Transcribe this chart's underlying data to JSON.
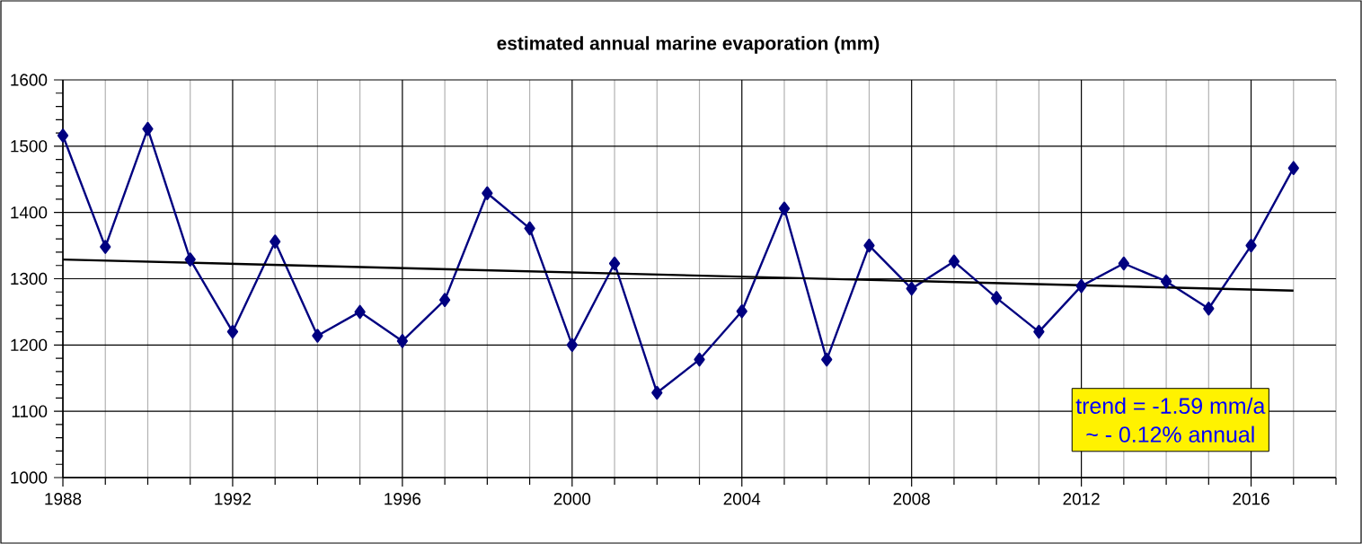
{
  "chart_data": {
    "type": "line",
    "title": "estimated annual marine evaporation (mm)",
    "x": [
      1988,
      1989,
      1990,
      1991,
      1992,
      1993,
      1994,
      1995,
      1996,
      1997,
      1998,
      1999,
      2000,
      2001,
      2002,
      2003,
      2004,
      2005,
      2006,
      2007,
      2008,
      2009,
      2010,
      2011,
      2012,
      2013,
      2014,
      2015,
      2016,
      2017
    ],
    "series": [
      {
        "color": "#000080",
        "marker": "diamond",
        "values": [
          1516,
          1348,
          1526,
          1329,
          1220,
          1356,
          1214,
          1250,
          1206,
          1268,
          1429,
          1376,
          1200,
          1323,
          1128,
          1178,
          1251,
          1406,
          1178,
          1350,
          1285,
          1326,
          1271,
          1220,
          1289,
          1323,
          1296,
          1255,
          1350,
          1467
        ]
      },
      {
        "type": "line",
        "color": "#000000",
        "marker": "none",
        "x": [
          1988,
          2017
        ],
        "values": [
          1329,
          1282
        ]
      }
    ],
    "xlim": [
      1988,
      2018
    ],
    "xticks": [
      1988,
      {
        "value": 1989,
        "label": null
      },
      {
        "value": 1990,
        "label": null
      },
      {
        "value": 1991,
        "label": null
      },
      1992,
      {
        "value": 1993,
        "label": null
      },
      {
        "value": 1994,
        "label": null
      },
      {
        "value": 1995,
        "label": null
      },
      1996,
      {
        "value": 1997,
        "label": null
      },
      {
        "value": 1998,
        "label": null
      },
      {
        "value": 1999,
        "label": null
      },
      2000,
      {
        "value": 2001,
        "label": null
      },
      {
        "value": 2002,
        "label": null
      },
      {
        "value": 2003,
        "label": null
      },
      2004,
      {
        "value": 2005,
        "label": null
      },
      {
        "value": 2006,
        "label": null
      },
      {
        "value": 2007,
        "label": null
      },
      2008,
      {
        "value": 2009,
        "label": null
      },
      {
        "value": 2010,
        "label": null
      },
      {
        "value": 2011,
        "label": null
      },
      2012,
      {
        "value": 2013,
        "label": null
      },
      {
        "value": 2014,
        "label": null
      },
      {
        "value": 2015,
        "label": null
      },
      2016,
      {
        "value": 2017,
        "label": null
      },
      {
        "value": 2018,
        "label": null
      }
    ],
    "ylim": [
      1000,
      1600
    ],
    "yticks": [
      1000,
      {
        "value": 1020,
        "label": null
      },
      {
        "value": 1040,
        "label": null
      },
      {
        "value": 1060,
        "label": null
      },
      {
        "value": 1080,
        "label": null
      },
      1100,
      {
        "value": 1120,
        "label": null
      },
      {
        "value": 1140,
        "label": null
      },
      {
        "value": 1160,
        "label": null
      },
      {
        "value": 1180,
        "label": null
      },
      1200,
      {
        "value": 1220,
        "label": null
      },
      {
        "value": 1240,
        "label": null
      },
      {
        "value": 1260,
        "label": null
      },
      {
        "value": 1280,
        "label": null
      },
      1300,
      {
        "value": 1320,
        "label": null
      },
      {
        "value": 1340,
        "label": null
      },
      {
        "value": 1360,
        "label": null
      },
      {
        "value": 1380,
        "label": null
      },
      1400,
      {
        "value": 1420,
        "label": null
      },
      {
        "value": 1440,
        "label": null
      },
      {
        "value": 1460,
        "label": null
      },
      {
        "value": 1480,
        "label": null
      },
      1500,
      {
        "value": 1520,
        "label": null
      },
      {
        "value": 1540,
        "label": null
      },
      {
        "value": 1560,
        "label": null
      },
      {
        "value": 1580,
        "label": null
      },
      1600
    ],
    "grid": true,
    "annotations": [
      "trend = -1.59 mm/a",
      "~ - 0.12% annual"
    ]
  }
}
